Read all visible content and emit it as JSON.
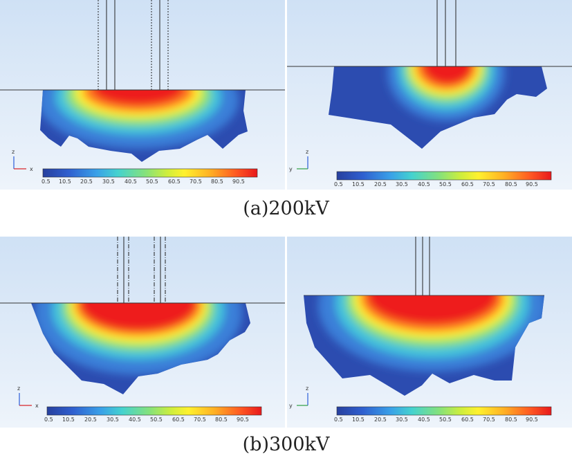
{
  "colorbar": {
    "ticks": [
      "0.5",
      "10.5",
      "20.5",
      "30.5",
      "40.5",
      "50.5",
      "60.5",
      "70.5",
      "80.5",
      "90.5"
    ],
    "colors": [
      "#2a4ab0",
      "#3b6fd8",
      "#3fa6e6",
      "#47d0c8",
      "#7fe07a",
      "#c8ec3a",
      "#fff030",
      "#ffb020",
      "#ff5520",
      "#ee1c1c"
    ]
  },
  "panels": [
    {
      "id": "a-left",
      "axis_h": "x",
      "axis_v": "z"
    },
    {
      "id": "a-right",
      "axis_h": "y",
      "axis_v": "z"
    },
    {
      "id": "b-left",
      "axis_h": "x",
      "axis_v": "z"
    },
    {
      "id": "b-right",
      "axis_h": "y",
      "axis_v": "z"
    }
  ],
  "captions": {
    "a": "(a)200kV",
    "b": "(b)300kV"
  }
}
